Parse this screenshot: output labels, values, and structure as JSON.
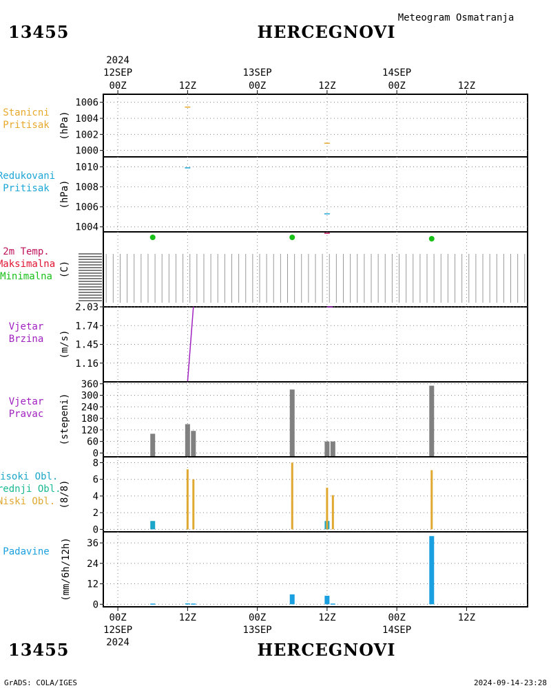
{
  "header": {
    "station_id": "13455",
    "station_name": "HERCEGNOVI",
    "subtitle": "Meteogram Osmatranja"
  },
  "footer": {
    "credit": "GrADS: COLA/IGES",
    "timestamp": "2024-09-14-23:28"
  },
  "time_axis": {
    "ticks": [
      {
        "t": 0,
        "hour": "00Z",
        "date": "12SEP",
        "year": "2024"
      },
      {
        "t": 12,
        "hour": "12Z",
        "date": "",
        "year": ""
      },
      {
        "t": 24,
        "hour": "00Z",
        "date": "13SEP",
        "year": ""
      },
      {
        "t": 36,
        "hour": "12Z",
        "date": "",
        "year": ""
      },
      {
        "t": 48,
        "hour": "00Z",
        "date": "14SEP",
        "year": ""
      },
      {
        "t": 60,
        "hour": "12Z",
        "date": "",
        "year": ""
      }
    ]
  },
  "colors": {
    "station_pressure": "#e8a92a",
    "reduced_pressure": "#1aa6d6",
    "temperature": "#c0105a",
    "maximum": "#e01030",
    "minimum": "#18c018",
    "wind_speed": "#a020c0",
    "wind_direction": "#808080",
    "high_clouds": "#1aa6c8",
    "mid_clouds": "#18b890",
    "low_clouds": "#e0a830",
    "precip": "#1aa0e0",
    "grid": "#808080"
  },
  "chart_data": [
    {
      "type": "line",
      "panel": "station_pressure",
      "label_lines": [
        "Stanicni",
        "Pritisak"
      ],
      "ylabel": "(hPa)",
      "yticks": [
        "1006",
        "1004",
        "1002",
        "1000"
      ],
      "ylim": [
        999.2,
        1007.0
      ],
      "series": [
        {
          "points": [
            [
              12,
              1005.4
            ],
            [
              36,
              1000.9
            ]
          ]
        }
      ]
    },
    {
      "type": "line",
      "panel": "reduced_pressure",
      "label_lines": [
        "Redukovani",
        "Pritisak"
      ],
      "ylabel": "(hPa)",
      "yticks": [
        "1010",
        "1008",
        "1006",
        "1004"
      ],
      "ylim": [
        1003.5,
        1011.0
      ],
      "series": [
        {
          "points": [
            [
              12,
              1009.9
            ],
            [
              36,
              1005.3
            ]
          ]
        }
      ]
    },
    {
      "type": "scatter",
      "panel": "temperature",
      "label_lines": [
        "2m Temp.",
        "Maksimalna",
        "Minimalna"
      ],
      "ylabel": "(C)",
      "minimum_points": [
        [
          6,
          1
        ],
        [
          30,
          1
        ],
        [
          54,
          0.8
        ]
      ],
      "temperature_points": [
        [
          36,
          0.9
        ]
      ]
    },
    {
      "type": "line",
      "panel": "wind_speed",
      "label_lines": [
        "Vjetar",
        "Brzina"
      ],
      "ylabel": "(m/s)",
      "yticks": [
        "2.03",
        "1.74",
        "1.45",
        "1.16"
      ],
      "ylim": [
        0.87,
        2.03
      ],
      "series": [
        {
          "points": [
            [
              12,
              0.87
            ],
            [
              13,
              2.03
            ]
          ]
        },
        {
          "points": [
            [
              36,
              2.03
            ],
            [
              37,
              2.03
            ]
          ]
        }
      ]
    },
    {
      "type": "bar",
      "panel": "wind_direction",
      "label_lines": [
        "Vjetar",
        "Pravac"
      ],
      "ylabel": "(stepeni)",
      "yticks": [
        "360",
        "300",
        "240",
        "180",
        "120",
        "60",
        "0"
      ],
      "ylim": [
        -20,
        370
      ],
      "bars": [
        [
          6,
          100
        ],
        [
          12,
          150
        ],
        [
          13,
          115
        ],
        [
          30,
          330
        ],
        [
          36,
          60
        ],
        [
          37,
          60
        ],
        [
          54,
          350
        ]
      ]
    },
    {
      "type": "bar",
      "panel": "clouds",
      "label_lines": [
        "Visoki Obl.",
        "Srednji Obl.",
        "Niski Obl."
      ],
      "ylabel": "(8/8)",
      "yticks": [
        "8",
        "6",
        "4",
        "2",
        "0"
      ],
      "ylim": [
        -0.3,
        8.7
      ],
      "high": [
        [
          6,
          1
        ],
        [
          36,
          1
        ]
      ],
      "low": [
        [
          12,
          7.2
        ],
        [
          13,
          6
        ],
        [
          30,
          8
        ],
        [
          36,
          5
        ],
        [
          37,
          4.1
        ],
        [
          54,
          7.1
        ]
      ]
    },
    {
      "type": "bar",
      "panel": "precipitation",
      "label_lines": [
        "Padavine"
      ],
      "ylabel": "(mm/6h/12h)",
      "yticks": [
        "36",
        "24",
        "12",
        "0"
      ],
      "ylim": [
        -1.5,
        42.5
      ],
      "bars": [
        [
          6,
          0.4
        ],
        [
          12,
          0.5
        ],
        [
          13,
          0.4
        ],
        [
          30,
          5.8
        ],
        [
          36,
          5
        ],
        [
          37,
          0.4
        ],
        [
          54,
          40
        ]
      ]
    }
  ]
}
